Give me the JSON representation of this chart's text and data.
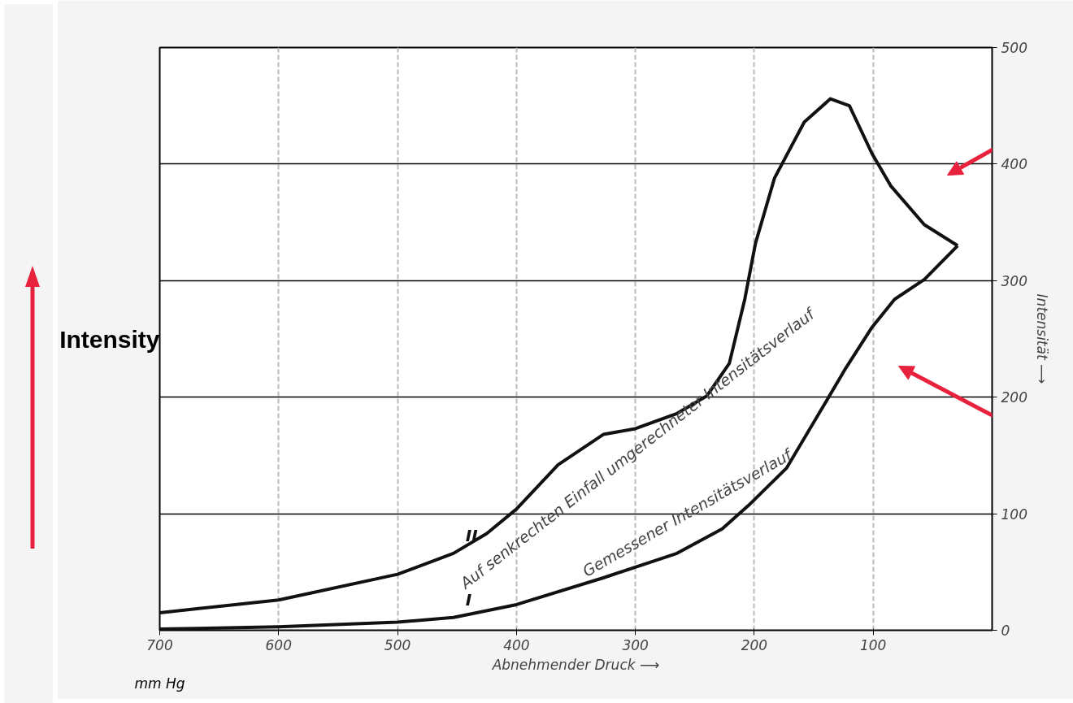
{
  "chart_data": {
    "type": "line",
    "xlabel": "Abnehmender Druck ⟶",
    "ylabel": "Intensität ⟶",
    "xlim": [
      700,
      0
    ],
    "ylim": [
      0,
      500
    ],
    "xticks": [
      700,
      600,
      500,
      400,
      300,
      200,
      100
    ],
    "yticks": [
      0,
      100,
      200,
      300,
      400,
      500
    ],
    "grid": true,
    "marker": "none",
    "line_style": "solid",
    "series": [
      {
        "name": "I",
        "color": "#111111",
        "x": [
          700,
          600,
          500,
          453,
          400,
          327,
          265,
          227,
          205,
          173,
          145,
          123,
          101,
          82,
          57,
          29
        ],
        "values": [
          1,
          3,
          7,
          11,
          22,
          45,
          66,
          87,
          107,
          139,
          187,
          225,
          260,
          284,
          301,
          330
        ]
      },
      {
        "name": "II",
        "color": "#111111",
        "x": [
          700,
          600,
          500,
          453,
          425,
          400,
          365,
          327,
          300,
          265,
          240,
          221,
          208,
          199,
          183,
          158,
          136,
          120,
          101,
          85,
          57,
          29
        ],
        "values": [
          15,
          26,
          48,
          66,
          83,
          104,
          142,
          168,
          173,
          186,
          201,
          229,
          284,
          332,
          388,
          436,
          456,
          450,
          409,
          381,
          348,
          330
        ]
      }
    ],
    "annotations": [
      "Gemessener Intensitätsverlauf",
      "Auf senkrechten Einfall umgerechneter Intensitätsverlauf",
      "mm Hg",
      "Intensity"
    ]
  }
}
